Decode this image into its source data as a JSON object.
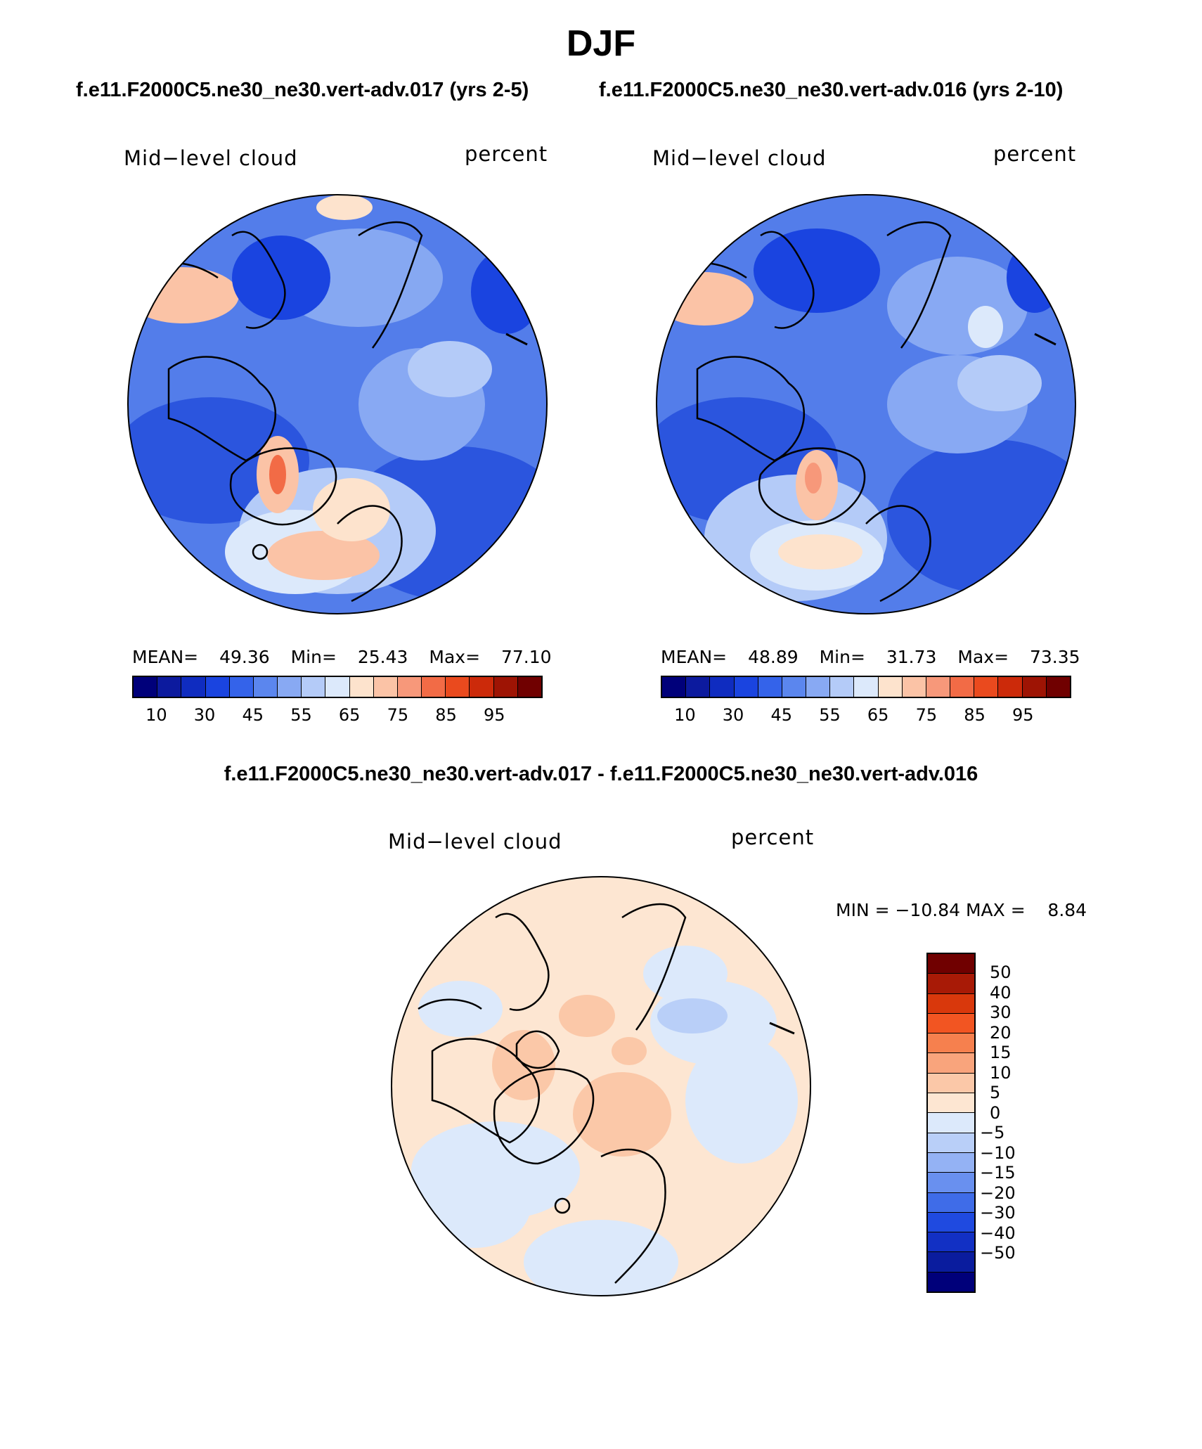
{
  "main_title": "DJF",
  "subtitle_left": "f.e11.F2000C5.ne30_ne30.vert-adv.017 (yrs 2-5)",
  "subtitle_right": "f.e11.F2000C5.ne30_ne30.vert-adv.016 (yrs 2-10)",
  "diff_title": "f.e11.F2000C5.ne30_ne30.vert-adv.017 - f.e11.F2000C5.ne30_ne30.vert-adv.016",
  "panels": [
    {
      "variable": "Mid−level cloud",
      "units": "percent",
      "mean_label": "MEAN=",
      "mean": "49.36",
      "min_label": "Min=",
      "min": "25.43",
      "max_label": "Max=",
      "max": "77.10"
    },
    {
      "variable": "Mid−level cloud",
      "units": "percent",
      "mean_label": "MEAN=",
      "mean": "48.89",
      "min_label": "Min=",
      "min": "31.73",
      "max_label": "Max=",
      "max": "73.35"
    }
  ],
  "diff_panel": {
    "variable": "Mid−level cloud",
    "units": "percent",
    "minmax": "MIN = −10.84 MAX =    8.84"
  },
  "colorbar_ticks": [
    "10",
    "30",
    "45",
    "55",
    "65",
    "75",
    "85",
    "95"
  ],
  "colorbar_colors": [
    "#00007a",
    "#0c1a9e",
    "#0f2cc0",
    "#1a44e0",
    "#3463ea",
    "#5b86ee",
    "#88a9f3",
    "#b4cbf8",
    "#dce9fb",
    "#fde3cd",
    "#fbc3a6",
    "#f7987a",
    "#f26b46",
    "#ea4a1e",
    "#cc2a0a",
    "#9e1404",
    "#700000"
  ],
  "diff_ticks": [
    "50",
    "40",
    "30",
    "20",
    "15",
    "10",
    "5",
    "0",
    "−5",
    "−10",
    "−15",
    "−20",
    "−30",
    "−40",
    "−50"
  ],
  "diff_colors": [
    "#700000",
    "#a81a06",
    "#d9380c",
    "#f25522",
    "#f6804e",
    "#f9a47c",
    "#fbc8a8",
    "#fde6d2",
    "#dce9fb",
    "#b9cff8",
    "#94b2f4",
    "#6990ef",
    "#3f6ce8",
    "#1f4ae0",
    "#1230c4",
    "#0a1c9e",
    "#00007a"
  ]
}
